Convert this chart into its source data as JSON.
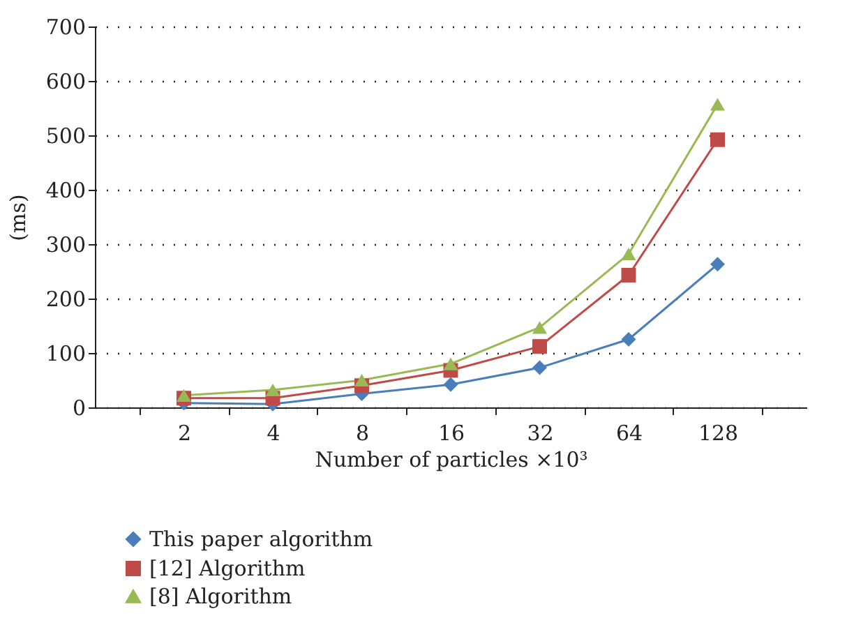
{
  "chart_data": {
    "type": "line",
    "xlabel": "Number of particles ×10³",
    "ylabel": "(ms)",
    "categories": [
      "2",
      "4",
      "8",
      "16",
      "32",
      "64",
      "128"
    ],
    "series": [
      {
        "name": "This paper algorithm",
        "color": "#4a7ebb",
        "marker": "diamond",
        "values": [
          8,
          6,
          25,
          42,
          73,
          125,
          263
        ]
      },
      {
        "name": "[12] Algorithm",
        "color": "#be4b48",
        "marker": "square",
        "values": [
          17,
          17,
          40,
          68,
          112,
          243,
          492
        ]
      },
      {
        "name": "[8] Algorithm",
        "color": "#98b954",
        "marker": "triangle",
        "values": [
          22,
          32,
          50,
          80,
          147,
          282,
          557
        ]
      }
    ],
    "ylim": [
      0,
      700
    ],
    "yticks": [
      0,
      100,
      200,
      300,
      400,
      500,
      600,
      700
    ],
    "grid": "y",
    "legend": "bottom left",
    "line_style": "solid"
  }
}
